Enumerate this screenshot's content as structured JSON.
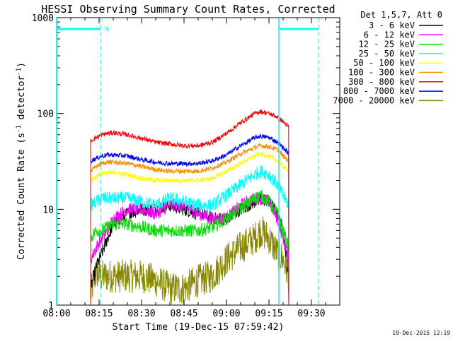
{
  "chart_data": {
    "type": "line",
    "title": "HESSI Observing Summary Count Rates, Corrected",
    "xlabel": "Start Time (19-Dec-15 07:59:42)",
    "ylabel": "Corrected Count Rate (s",
    "ylabel_sup": "-1",
    "ylabel_tail": " detector",
    "ylabel_sup2": "-1",
    "ylabel_close": ")",
    "y_scale": "log",
    "ylim": [
      1,
      1000
    ],
    "xlim_minutes": [
      0,
      100
    ],
    "x_ticks": [
      {
        "label": "08:00",
        "t": 0
      },
      {
        "label": "08:15",
        "t": 15
      },
      {
        "label": "08:30",
        "t": 30
      },
      {
        "label": "08:45",
        "t": 45
      },
      {
        "label": "09:00",
        "t": 60
      },
      {
        "label": "09:15",
        "t": 75
      },
      {
        "label": "09:30",
        "t": 90
      }
    ],
    "y_ticks": [
      {
        "label": "1",
        "v": 1
      },
      {
        "label": "10",
        "v": 10
      },
      {
        "label": "100",
        "v": 100
      },
      {
        "label": "1000",
        "v": 1000
      }
    ],
    "legend_header": "Det 1,5,7, Att 0",
    "legend_placement": "right",
    "series": [
      {
        "name": "3 - 6 keV",
        "color": "#000000",
        "t": [
          12,
          14,
          16,
          18,
          20,
          25,
          30,
          35,
          40,
          45,
          50,
          55,
          60,
          65,
          70,
          72,
          75,
          78,
          80,
          82
        ],
        "values": [
          1.5,
          2.5,
          3.5,
          5,
          7,
          9,
          10,
          10,
          11,
          10,
          9,
          8,
          8,
          10,
          12,
          13,
          12,
          9,
          6,
          2
        ]
      },
      {
        "name": "6 - 12 keV",
        "color": "#ff00ff",
        "t": [
          12,
          14,
          16,
          18,
          20,
          25,
          30,
          35,
          40,
          45,
          50,
          55,
          60,
          65,
          70,
          72,
          75,
          78,
          80,
          82
        ],
        "values": [
          3,
          4,
          5,
          6,
          8,
          10,
          10,
          9,
          11,
          11,
          9,
          8,
          8,
          11,
          13,
          13,
          12,
          8,
          5,
          3
        ]
      },
      {
        "name": "12 - 25 keV",
        "color": "#00dd00",
        "t": [
          12,
          14,
          16,
          18,
          20,
          25,
          30,
          35,
          40,
          45,
          50,
          55,
          60,
          65,
          70,
          72,
          75,
          78,
          80,
          82
        ],
        "values": [
          5,
          6,
          6,
          6.5,
          7,
          7,
          6.5,
          6,
          6,
          6,
          6,
          6.5,
          8,
          10,
          13,
          14,
          12,
          9,
          6,
          4
        ]
      },
      {
        "name": "25 - 50 keV",
        "color": "#00ffff",
        "t": [
          12,
          14,
          16,
          18,
          20,
          25,
          30,
          35,
          40,
          45,
          50,
          55,
          60,
          65,
          70,
          72,
          75,
          78,
          80,
          82
        ],
        "values": [
          11,
          12,
          13,
          13,
          13,
          13,
          12,
          11,
          13,
          12,
          11,
          11,
          14,
          18,
          23,
          25,
          23,
          18,
          14,
          11
        ]
      },
      {
        "name": "50 - 100 keV",
        "color": "#ffff00",
        "t": [
          12,
          14,
          16,
          18,
          20,
          25,
          30,
          35,
          40,
          45,
          50,
          55,
          60,
          65,
          70,
          72,
          75,
          78,
          80,
          82
        ],
        "values": [
          20,
          22,
          24,
          24,
          24,
          23,
          21,
          20,
          20,
          20,
          20,
          21,
          25,
          30,
          36,
          38,
          36,
          32,
          28,
          25
        ]
      },
      {
        "name": "100 - 300 keV",
        "color": "#ff8c00",
        "t": [
          12,
          14,
          16,
          18,
          20,
          25,
          30,
          35,
          40,
          45,
          50,
          55,
          60,
          65,
          70,
          72,
          75,
          78,
          80,
          82
        ],
        "values": [
          25,
          28,
          30,
          31,
          31,
          30,
          28,
          26,
          25,
          25,
          25,
          27,
          31,
          38,
          44,
          46,
          45,
          42,
          36,
          32
        ]
      },
      {
        "name": "300 - 800 keV",
        "color": "#ff0000",
        "t": [
          12,
          14,
          16,
          18,
          20,
          25,
          30,
          35,
          40,
          45,
          50,
          55,
          60,
          65,
          70,
          72,
          75,
          78,
          80,
          82
        ],
        "values": [
          52,
          56,
          60,
          62,
          63,
          60,
          55,
          50,
          48,
          46,
          46,
          50,
          62,
          80,
          100,
          105,
          100,
          92,
          82,
          72
        ]
      },
      {
        "name": "800 - 7000 keV",
        "color": "#0000ff",
        "t": [
          12,
          14,
          16,
          18,
          20,
          25,
          30,
          35,
          40,
          45,
          50,
          55,
          60,
          65,
          70,
          72,
          75,
          78,
          80,
          82
        ],
        "values": [
          32,
          34,
          36,
          37,
          37,
          36,
          33,
          31,
          30,
          30,
          30,
          32,
          37,
          46,
          56,
          58,
          56,
          50,
          44,
          38
        ]
      },
      {
        "name": "7000 - 20000 keV",
        "color": "#888800",
        "t": [
          12,
          14,
          16,
          18,
          20,
          25,
          30,
          35,
          40,
          45,
          50,
          55,
          60,
          65,
          70,
          72,
          75,
          78,
          80,
          82
        ],
        "values": [
          1.3,
          2.2,
          2,
          2,
          2,
          2,
          2,
          1.8,
          1.5,
          1.5,
          1.8,
          2,
          3,
          4,
          5,
          6,
          5,
          3.5,
          3,
          2
        ]
      }
    ],
    "annotations": [
      {
        "label": "N",
        "t": 17
      },
      {
        "label": "",
        "t": 0
      },
      {
        "label": "",
        "t": 15.5
      },
      {
        "label": "",
        "t": 78.5
      },
      {
        "label": "",
        "t": 92.5
      }
    ],
    "footer_timestamp": "19-Dec-2015 12:19"
  }
}
